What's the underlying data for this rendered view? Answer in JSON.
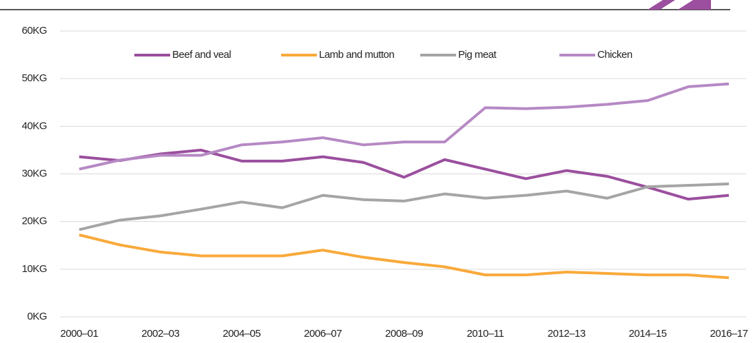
{
  "chart_data": {
    "type": "line",
    "categories": [
      "2000–01",
      null,
      "2002–03",
      null,
      "2004–05",
      null,
      "2006–07",
      null,
      "2008–09",
      null,
      "2010–11",
      null,
      "2012–13",
      null,
      "2014–15",
      null,
      "2016–17"
    ],
    "series": [
      {
        "name": "Beef and veal",
        "color": "#9b4f9e",
        "values": [
          33.6,
          32.8,
          34.2,
          35.0,
          32.7,
          32.7,
          33.6,
          32.4,
          29.3,
          33.0,
          31.0,
          29.0,
          30.7,
          29.5,
          27.2,
          24.7,
          25.5
        ]
      },
      {
        "name": "Lamb and mutton",
        "color": "#f9a93a",
        "values": [
          17.2,
          15.1,
          13.6,
          12.8,
          12.8,
          12.8,
          14.0,
          12.5,
          11.4,
          10.5,
          8.8,
          8.8,
          9.4,
          9.1,
          8.8,
          8.8,
          8.2
        ]
      },
      {
        "name": "Pig meat",
        "color": "#a5a5a5",
        "values": [
          18.3,
          20.3,
          21.2,
          22.6,
          24.1,
          22.9,
          25.5,
          24.6,
          24.3,
          25.8,
          24.9,
          25.5,
          26.4,
          24.9,
          27.3,
          27.6,
          27.9
        ]
      },
      {
        "name": "Chicken",
        "color": "#b689c4",
        "values": [
          31.0,
          32.9,
          33.9,
          33.9,
          36.1,
          36.7,
          37.6,
          36.1,
          36.7,
          36.7,
          43.9,
          43.7,
          44.0,
          44.6,
          45.4,
          48.3,
          48.9
        ]
      }
    ],
    "ylim": [
      0,
      60
    ],
    "yticks": [
      {
        "value": 0,
        "label": "0KG"
      },
      {
        "value": 10,
        "label": "10KG"
      },
      {
        "value": 20,
        "label": "20KG"
      },
      {
        "value": 30,
        "label": "30KG"
      },
      {
        "value": 40,
        "label": "40KG"
      },
      {
        "value": 50,
        "label": "50KG"
      },
      {
        "value": 60,
        "label": "60KG"
      }
    ],
    "grid": true,
    "legend": "top"
  }
}
